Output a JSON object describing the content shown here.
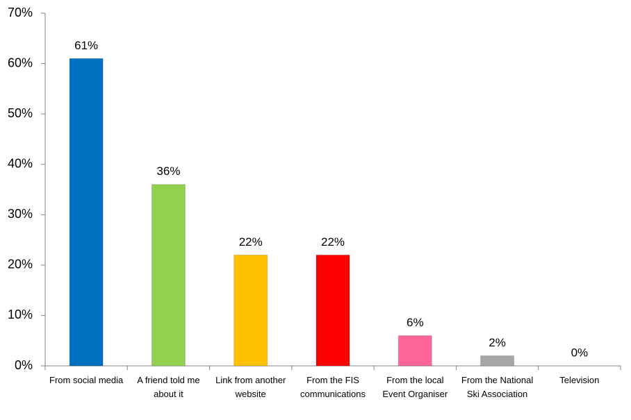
{
  "chart_data": {
    "type": "bar",
    "categories": [
      "From social media",
      "A friend told me about it",
      "Link from another website",
      "From the FIS communications",
      "From the local Event Organiser",
      "From the National Ski Association",
      "Television"
    ],
    "values": [
      61,
      36,
      22,
      22,
      6,
      2,
      0
    ],
    "value_labels": [
      "61%",
      "36%",
      "22%",
      "22%",
      "6%",
      "2%",
      "0%"
    ],
    "colors": [
      "#0070c0",
      "#92d050",
      "#ffc000",
      "#ff0000",
      "#ff6699",
      "#a6a6a6",
      "#4f81bd"
    ],
    "ylim": [
      0,
      70
    ],
    "yticks": [
      {
        "value": 0,
        "label": "0%"
      },
      {
        "value": 10,
        "label": "10%"
      },
      {
        "value": 20,
        "label": "20%"
      },
      {
        "value": 30,
        "label": "30%"
      },
      {
        "value": 40,
        "label": "40%"
      },
      {
        "value": 50,
        "label": "50%"
      },
      {
        "value": 60,
        "label": "60%"
      },
      {
        "value": 70,
        "label": "70%"
      }
    ],
    "grid": false
  }
}
